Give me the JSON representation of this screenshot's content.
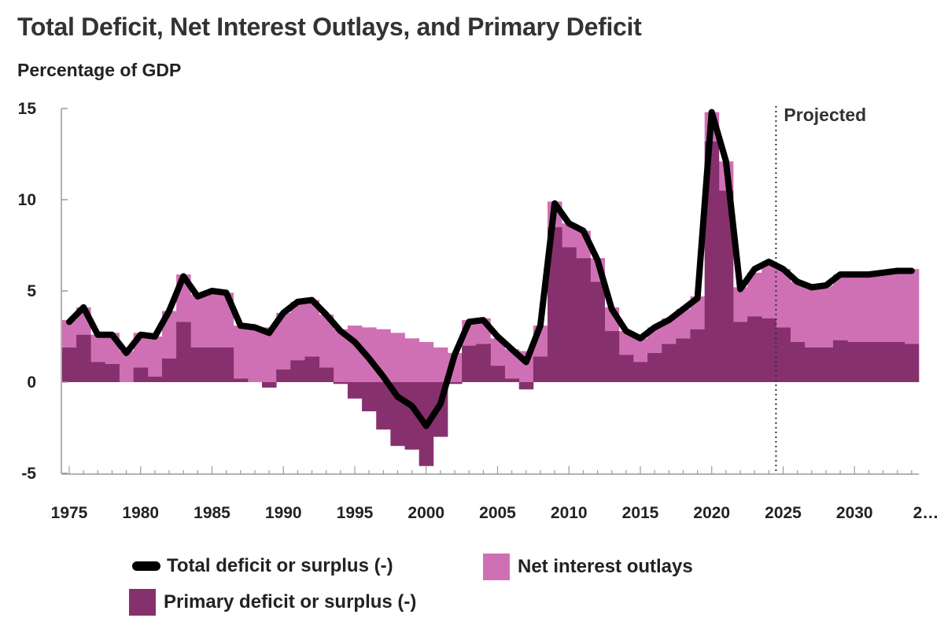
{
  "title": "Total Deficit, Net Interest Outlays, and Primary Deficit",
  "subtitle": "Percentage of GDP",
  "projected_label": "Projected",
  "colors": {
    "total_line": "#000000",
    "net_interest": "#d070b4",
    "primary": "#87306e",
    "axis": "#999999"
  },
  "legend": {
    "total": "Total deficit or surplus (-)",
    "interest": "Net interest outlays",
    "primary": "Primary deficit or surplus (-)"
  },
  "chart_data": {
    "type": "bar",
    "title": "Total Deficit, Net Interest Outlays, and Primary Deficit",
    "ylabel": "Percentage of GDP",
    "xlabel": "",
    "ylim": [
      -5,
      15
    ],
    "yticks": [
      -5,
      0,
      5,
      10,
      15
    ],
    "xticks": [
      "1975",
      "1980",
      "1985",
      "1990",
      "1995",
      "2000",
      "2005",
      "2010",
      "2015",
      "2020",
      "2025",
      "2030",
      "2…"
    ],
    "projection_start_year": 2024.5,
    "x": [
      1975,
      1976,
      1977,
      1978,
      1979,
      1980,
      1981,
      1982,
      1983,
      1984,
      1985,
      1986,
      1987,
      1988,
      1989,
      1990,
      1991,
      1992,
      1993,
      1994,
      1995,
      1996,
      1997,
      1998,
      1999,
      2000,
      2001,
      2002,
      2003,
      2004,
      2005,
      2006,
      2007,
      2008,
      2009,
      2010,
      2011,
      2012,
      2013,
      2014,
      2015,
      2016,
      2017,
      2018,
      2019,
      2020,
      2021,
      2022,
      2023,
      2024,
      2025,
      2026,
      2027,
      2028,
      2029,
      2030,
      2031,
      2032,
      2033,
      2034
    ],
    "series": [
      {
        "name": "Total deficit or surplus (-)",
        "type": "line",
        "values": [
          3.3,
          4.1,
          2.6,
          2.6,
          1.6,
          2.6,
          2.5,
          3.9,
          5.8,
          4.7,
          5.0,
          4.9,
          3.1,
          3.0,
          2.7,
          3.8,
          4.4,
          4.5,
          3.7,
          2.8,
          2.2,
          1.3,
          0.3,
          -0.8,
          -1.3,
          -2.4,
          -1.2,
          1.5,
          3.3,
          3.4,
          2.5,
          1.8,
          1.1,
          3.1,
          9.8,
          8.7,
          8.3,
          6.7,
          4.0,
          2.8,
          2.4,
          3.0,
          3.4,
          4.0,
          4.6,
          14.8,
          12.1,
          5.1,
          6.2,
          6.6,
          6.2,
          5.5,
          5.2,
          5.3,
          5.9,
          5.9,
          5.9,
          6.0,
          6.1,
          6.1
        ]
      },
      {
        "name": "Net interest outlays",
        "type": "bar",
        "values": [
          1.5,
          1.5,
          1.5,
          1.7,
          1.7,
          1.9,
          2.2,
          2.6,
          2.6,
          2.9,
          3.1,
          3.0,
          2.9,
          2.9,
          3.0,
          3.1,
          3.2,
          3.1,
          2.9,
          2.9,
          3.1,
          3.0,
          2.9,
          2.7,
          2.4,
          2.2,
          1.9,
          1.6,
          1.4,
          1.4,
          1.5,
          1.6,
          1.7,
          1.7,
          1.4,
          1.3,
          1.5,
          1.3,
          1.3,
          1.3,
          1.3,
          1.4,
          1.4,
          1.6,
          1.8,
          1.6,
          1.6,
          1.9,
          2.4,
          3.1,
          3.2,
          3.3,
          3.3,
          3.4,
          3.6,
          3.7,
          3.7,
          3.9,
          4.0,
          4.1
        ]
      },
      {
        "name": "Primary deficit or surplus (-)",
        "type": "bar",
        "values": [
          1.9,
          2.6,
          1.1,
          1.0,
          0.0,
          0.8,
          0.3,
          1.3,
          3.3,
          1.9,
          1.9,
          1.9,
          0.2,
          0.0,
          -0.3,
          0.7,
          1.2,
          1.4,
          0.8,
          -0.1,
          -0.9,
          -1.6,
          -2.6,
          -3.5,
          -3.7,
          -4.6,
          -3.0,
          -0.1,
          2.0,
          2.1,
          0.9,
          0.2,
          -0.4,
          1.4,
          8.5,
          7.4,
          6.8,
          5.5,
          2.8,
          1.5,
          1.1,
          1.6,
          2.1,
          2.4,
          2.9,
          13.2,
          10.5,
          3.3,
          3.6,
          3.5,
          3.0,
          2.2,
          1.9,
          1.9,
          2.3,
          2.2,
          2.2,
          2.2,
          2.2,
          2.1
        ]
      }
    ]
  }
}
